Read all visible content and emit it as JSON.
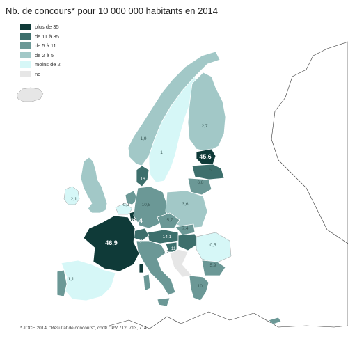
{
  "title": "Nb. de concours* pour 10 000 000 habitants en 2014",
  "legend": [
    {
      "label": "plus de 35",
      "color": "#0f3a38"
    },
    {
      "label": "de 11 à 35",
      "color": "#3d6f6c"
    },
    {
      "label": "de 5 à 11",
      "color": "#6b9896"
    },
    {
      "label": "de 2 à 5",
      "color": "#a2c8c7"
    },
    {
      "label": "moins de 2",
      "color": "#d6f7f7"
    },
    {
      "label": "nc",
      "color": "#e6e6e6"
    }
  ],
  "footnote": "* JOCE 2014, \"Résultat de concours\", code CPV 712, 713, 714",
  "regions": [
    {
      "value": "45,6",
      "class": "plus de 35"
    },
    {
      "value": "46,9",
      "class": "plus de 35"
    },
    {
      "value": "36,4",
      "class": "plus de 35"
    },
    {
      "value": "29,5",
      "class": "de 11 à 35"
    },
    {
      "value": "16",
      "class": "de 11 à 35"
    },
    {
      "value": "14,1",
      "class": "de 11 à 35"
    },
    {
      "value": "11,8",
      "class": "de 11 à 35"
    },
    {
      "value": "10,5",
      "class": "de 5 à 11"
    },
    {
      "value": "10,1",
      "class": "de 5 à 11"
    },
    {
      "value": "7,4",
      "class": "de 5 à 11"
    },
    {
      "value": "6,8",
      "class": "de 5 à 11"
    },
    {
      "value": "5,9",
      "class": "de 5 à 11"
    },
    {
      "value": "5,7",
      "class": "de 5 à 11"
    },
    {
      "value": "5",
      "class": "de 5 à 11"
    },
    {
      "value": "3,6",
      "class": "de 2 à 5"
    },
    {
      "value": "2,7",
      "class": "de 2 à 5"
    },
    {
      "value": "2,2",
      "class": "de 2 à 5"
    },
    {
      "value": "2,1",
      "class": "de 2 à 5"
    },
    {
      "value": "1,9",
      "class": "moins de 2"
    },
    {
      "value": "1,1",
      "class": "moins de 2"
    },
    {
      "value": "1",
      "class": "moins de 2"
    },
    {
      "value": "0,9",
      "class": "moins de 2"
    },
    {
      "value": "0,5",
      "class": "moins de 2"
    }
  ]
}
